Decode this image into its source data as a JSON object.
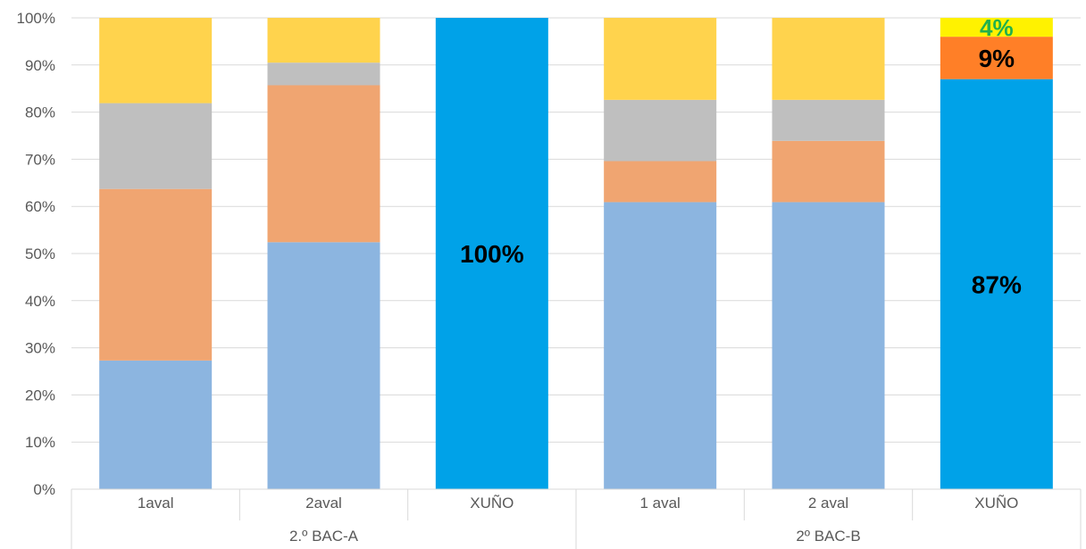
{
  "chart_data": {
    "type": "bar",
    "stacked": "percent",
    "categories": [
      "1aval",
      "2aval",
      "XUÑO",
      "1 aval",
      "2 aval",
      "XUÑO"
    ],
    "groups": [
      {
        "label": "2.º BAC-A",
        "categories": [
          0,
          1,
          2
        ]
      },
      {
        "label": "2º BAC-B",
        "categories": [
          3,
          4,
          5
        ]
      }
    ],
    "series": [
      {
        "color": "#8cb5e0",
        "values": [
          27.3,
          52.4,
          0,
          60.9,
          60.9,
          0
        ]
      },
      {
        "color": "#f0a571",
        "values": [
          36.4,
          33.3,
          0,
          8.7,
          13.0,
          0
        ]
      },
      {
        "color": "#bfbfbf",
        "values": [
          18.2,
          4.8,
          0,
          13.0,
          8.7,
          0
        ]
      },
      {
        "color": "#ffd34d",
        "values": [
          18.1,
          9.5,
          0,
          17.4,
          17.4,
          0
        ]
      }
    ],
    "final_bars": [
      {
        "category_index": 2,
        "segments": [
          {
            "value": 100,
            "color": "#00a2e8",
            "label": "100%",
            "label_color": "#000000"
          }
        ]
      },
      {
        "category_index": 5,
        "segments": [
          {
            "value": 87,
            "color": "#00a2e8",
            "label": "87%",
            "label_color": "#000000"
          },
          {
            "value": 9,
            "color": "#ff7f27",
            "label": "9%",
            "label_color": "#000000"
          },
          {
            "value": 4,
            "color": "#fff200",
            "label": "4%",
            "label_color": "#22b14c"
          }
        ]
      }
    ],
    "yticks": [
      "0%",
      "10%",
      "20%",
      "30%",
      "40%",
      "50%",
      "60%",
      "70%",
      "80%",
      "90%",
      "100%"
    ],
    "ylim": [
      0,
      100
    ],
    "grid": true,
    "legend": "none",
    "title": "",
    "xlabel": "",
    "ylabel": ""
  }
}
